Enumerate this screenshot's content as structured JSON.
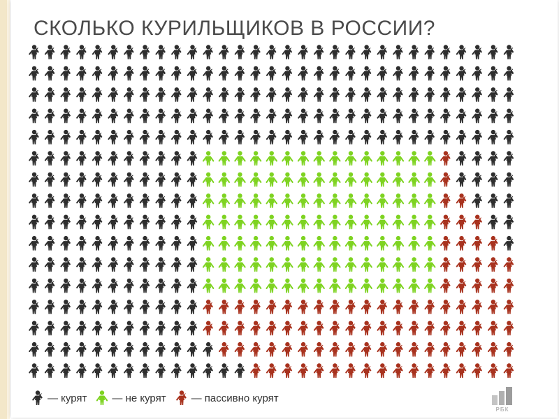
{
  "title": "СКОЛЬКО КУРИЛЬЩИКОВ В РОССИИ?",
  "colors": {
    "smoke": "#2e2e2e",
    "no_smoke": "#7ed321",
    "passive": "#a8321e"
  },
  "chart_data": {
    "type": "pictogram",
    "title": "СКОЛЬКО КУРИЛЬЩИКОВ В РОССИИ?",
    "columns": 31,
    "legend": [
      {
        "key": "smoke",
        "label": "— курят"
      },
      {
        "key": "no_smoke",
        "label": "— не курят"
      },
      {
        "key": "passive",
        "label": "— пассивно курят"
      }
    ],
    "rows": [
      {
        "smoke": 31,
        "no_smoke": 0,
        "passive": 0
      },
      {
        "smoke": 31,
        "no_smoke": 0,
        "passive": 0
      },
      {
        "smoke": 31,
        "no_smoke": 0,
        "passive": 0
      },
      {
        "smoke": 31,
        "no_smoke": 0,
        "passive": 0
      },
      {
        "smoke": 31,
        "no_smoke": 0,
        "passive": 0
      },
      {
        "smoke": 11,
        "no_smoke": 15,
        "passive": 1
      },
      {
        "smoke": 11,
        "no_smoke": 15,
        "passive": 1
      },
      {
        "smoke": 11,
        "no_smoke": 15,
        "passive": 2
      },
      {
        "smoke": 11,
        "no_smoke": 15,
        "passive": 3
      },
      {
        "smoke": 11,
        "no_smoke": 15,
        "passive": 4
      },
      {
        "smoke": 11,
        "no_smoke": 15,
        "passive": 5
      },
      {
        "smoke": 11,
        "no_smoke": 15,
        "passive": 6
      },
      {
        "smoke": 11,
        "no_smoke": 0,
        "passive": 20
      },
      {
        "smoke": 11,
        "no_smoke": 0,
        "passive": 20
      },
      {
        "smoke": 12,
        "no_smoke": 0,
        "passive": 19
      },
      {
        "smoke": 14,
        "no_smoke": 0,
        "passive": 17
      }
    ]
  },
  "logo": {
    "text": "РБК"
  }
}
